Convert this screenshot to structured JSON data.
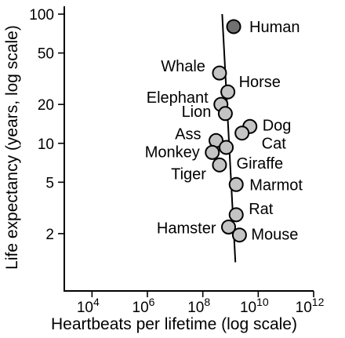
{
  "chart_data": {
    "type": "scatter",
    "title": "",
    "xlabel": "Heartbeats per lifetime (log scale)",
    "ylabel": "Life expectancy (years, log scale)",
    "xscale": "log",
    "yscale": "log",
    "xlim": [
      1000,
      1000000000000
    ],
    "ylim": [
      1,
      100
    ],
    "grid": false,
    "x_ticks": [
      {
        "base": "10",
        "exp": "4",
        "value": 10000
      },
      {
        "base": "10",
        "exp": "6",
        "value": 1000000
      },
      {
        "base": "10",
        "exp": "8",
        "value": 100000000
      },
      {
        "base": "10",
        "exp": "10",
        "value": 10000000000
      },
      {
        "base": "10",
        "exp": "12",
        "value": 1000000000000
      }
    ],
    "y_ticks": [
      {
        "label": "100",
        "value": 100
      },
      {
        "label": "50",
        "value": 50
      },
      {
        "label": "20",
        "value": 20
      },
      {
        "label": "10",
        "value": 10
      },
      {
        "label": "5",
        "value": 5
      },
      {
        "label": "2",
        "value": 2
      }
    ],
    "trend_line": {
      "points": [
        [
          500000000,
          100
        ],
        [
          1500000000,
          1.2
        ]
      ]
    },
    "points": [
      {
        "name": "Human",
        "x": 1300000000,
        "y": 80,
        "color": "#707070"
      },
      {
        "name": "Whale",
        "x": 400000000,
        "y": 35,
        "color": "#c4c4c4"
      },
      {
        "name": "Horse",
        "x": 800000000,
        "y": 25,
        "color": "#c4c4c4"
      },
      {
        "name": "Elephant",
        "x": 450000000,
        "y": 20,
        "color": "#c4c4c4"
      },
      {
        "name": "Lion",
        "x": 650000000,
        "y": 17,
        "color": "#c4c4c4"
      },
      {
        "name": "Dog",
        "x": 5000000000,
        "y": 13.5,
        "color": "#c4c4c4"
      },
      {
        "name": "Cat",
        "x": 2600000000,
        "y": 12,
        "color": "#c4c4c4"
      },
      {
        "name": "Ass",
        "x": 300000000,
        "y": 10.5,
        "color": "#c4c4c4"
      },
      {
        "name": "Giraffe",
        "x": 700000000,
        "y": 9.3,
        "color": "#c4c4c4"
      },
      {
        "name": "Monkey",
        "x": 220000000,
        "y": 8.5,
        "color": "#c4c4c4"
      },
      {
        "name": "Tiger",
        "x": 400000000,
        "y": 6.8,
        "color": "#c4c4c4"
      },
      {
        "name": "Marmot",
        "x": 1600000000,
        "y": 4.8,
        "color": "#c4c4c4"
      },
      {
        "name": "Rat",
        "x": 1600000000,
        "y": 2.8,
        "color": "#c4c4c4"
      },
      {
        "name": "Hamster",
        "x": 850000000,
        "y": 2.25,
        "color": "#c4c4c4"
      },
      {
        "name": "Mouse",
        "x": 2100000000,
        "y": 1.95,
        "color": "#c4c4c4"
      }
    ]
  }
}
